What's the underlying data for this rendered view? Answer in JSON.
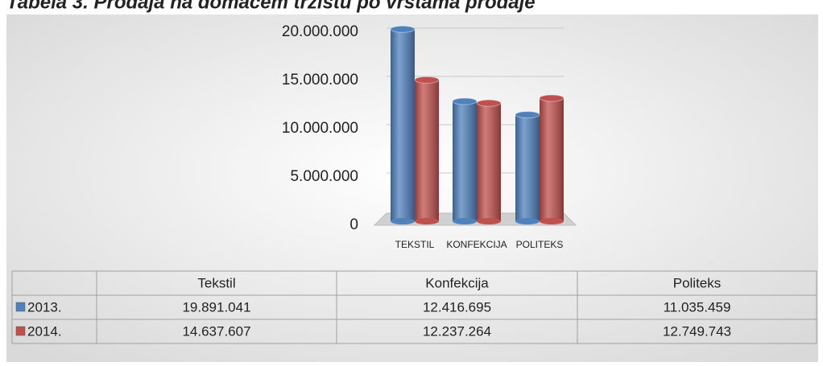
{
  "chart_data": {
    "type": "bar",
    "title": "Tabela 3. Prodaja na domaćem tržištu po vrstama prodaje",
    "categories": [
      "TEKSTIL",
      "KONFEKCIJA",
      "POLITEKS"
    ],
    "series": [
      {
        "name": "2013.",
        "color": "#4f81bd",
        "values": [
          19891041,
          12416695,
          11035459
        ],
        "value_labels": [
          "19.891.041",
          "12.416.695",
          "11.035.459"
        ]
      },
      {
        "name": "2014.",
        "color": "#c0504d",
        "values": [
          14637607,
          12237264,
          12749743
        ],
        "value_labels": [
          "14.637.607",
          "12.237.264",
          "12.749.743"
        ]
      }
    ],
    "ylim": [
      0,
      20000000
    ],
    "yticks": [
      0,
      {
        "value": 5000000,
        "label": "5.000.000"
      },
      {
        "value": 10000000,
        "label": "10.000.000"
      },
      {
        "value": 15000000,
        "label": "15.000.000"
      },
      {
        "value": 20000000,
        "label": "20.000.000"
      }
    ],
    "grid": true,
    "table": {
      "columns": [
        "Tekstil",
        "Konfekcija",
        "Politeks"
      ]
    }
  }
}
